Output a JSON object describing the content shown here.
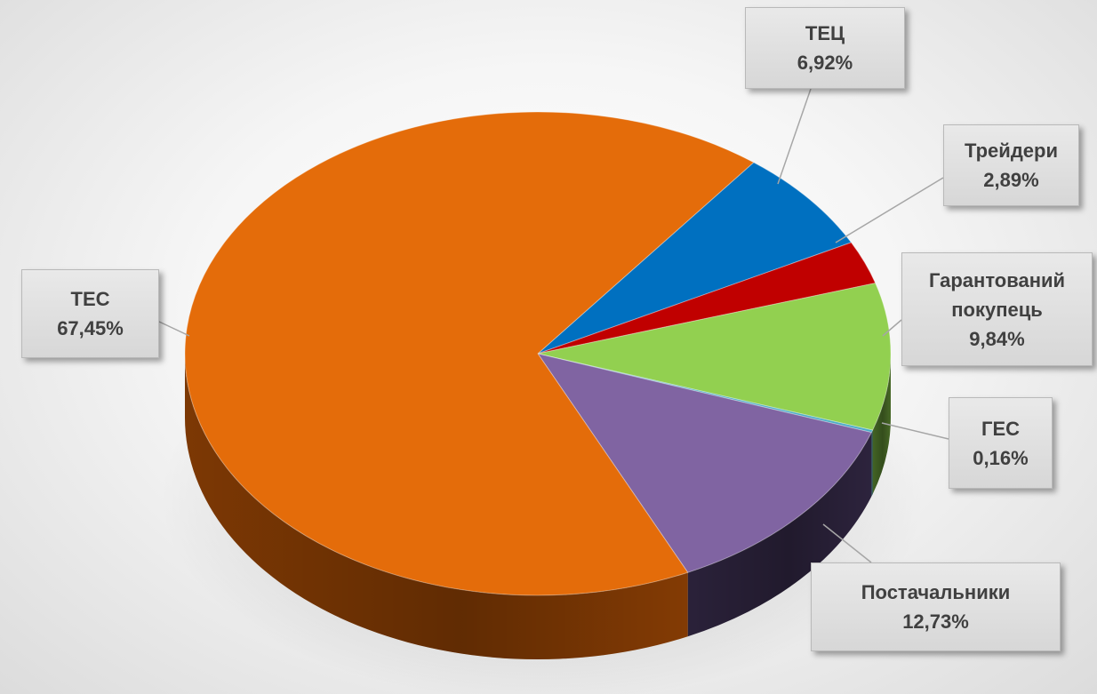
{
  "chart_data": {
    "type": "pie",
    "style": "3d",
    "title": "",
    "start_angle_deg": -52.3,
    "slices": [
      {
        "name": "ТЕЦ",
        "value": 6.92,
        "label": "6,92%",
        "color": "#0070C0",
        "side_color": "#003a66"
      },
      {
        "name": "Трейдери",
        "value": 2.89,
        "label": "2,89%",
        "color": "#C00000",
        "side_color": "#600000"
      },
      {
        "name": "Гарантований покупець",
        "value": 9.84,
        "label": "9,84%",
        "color": "#92D050",
        "side_color": "#4a6e28"
      },
      {
        "name": "ГЕС",
        "value": 0.16,
        "label": "0,16%",
        "color": "#4BACC6",
        "side_color": "#255a68"
      },
      {
        "name": "Постачальники",
        "value": 12.73,
        "label": "12,73%",
        "color": "#8064A2",
        "side_color": "#2f2540"
      },
      {
        "name": "ТЕС",
        "value": 67.45,
        "label": "67,45%",
        "color": "#E46C0A",
        "side_color": "#8a3e04"
      }
    ],
    "data_labels": [
      {
        "lines": [
          "ТЕЦ",
          "6,92%"
        ]
      },
      {
        "lines": [
          "Трейдери",
          "2,89%"
        ]
      },
      {
        "lines": [
          "Гарантований",
          "покупець",
          "9,84%"
        ]
      },
      {
        "lines": [
          "ГЕС",
          "0,16%"
        ]
      },
      {
        "lines": [
          "Постачальники",
          "12,73%"
        ]
      },
      {
        "lines": [
          "ТЕС",
          "67,45%"
        ]
      }
    ]
  }
}
